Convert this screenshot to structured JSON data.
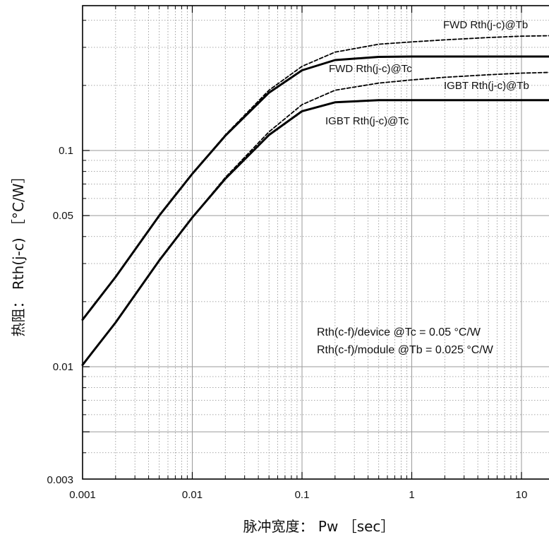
{
  "chart_data": {
    "type": "line",
    "title": "",
    "xlabel": "脉冲宽度： Pw ［sec］",
    "ylabel": "热阻： Rth(j-c) ［°C/W］",
    "x_scale": "log",
    "y_scale": "log",
    "xlim": [
      0.001,
      20
    ],
    "ylim": [
      0.003,
      0.5
    ],
    "x_ticks": [
      0.001,
      0.01,
      0.1,
      1,
      10
    ],
    "x_tick_labels": [
      "0.001",
      "0.01",
      "0.1",
      "1",
      "10"
    ],
    "y_ticks": [
      0.003,
      0.01,
      0.05,
      0.1
    ],
    "y_tick_labels": [
      "0.003",
      "0.01",
      "0.05",
      "0.1"
    ],
    "grid": true,
    "series": [
      {
        "name": "FWD Rth(j-c)@Tb",
        "style": "dashed",
        "x": [
          0.001,
          0.002,
          0.005,
          0.01,
          0.02,
          0.05,
          0.1,
          0.2,
          0.5,
          1,
          2,
          5,
          10,
          20
        ],
        "y": [
          0.0165,
          0.026,
          0.05,
          0.078,
          0.118,
          0.19,
          0.245,
          0.285,
          0.31,
          0.318,
          0.325,
          0.333,
          0.338,
          0.34
        ]
      },
      {
        "name": "FWD Rth(j-c)@Tc",
        "style": "solid",
        "x": [
          0.001,
          0.002,
          0.005,
          0.01,
          0.02,
          0.05,
          0.1,
          0.2,
          0.5,
          1,
          2,
          5,
          10,
          20
        ],
        "y": [
          0.0165,
          0.026,
          0.05,
          0.078,
          0.117,
          0.185,
          0.235,
          0.262,
          0.271,
          0.272,
          0.272,
          0.272,
          0.272,
          0.272
        ]
      },
      {
        "name": "IGBT Rth(j-c)@Tb",
        "style": "dashed",
        "x": [
          0.001,
          0.002,
          0.005,
          0.01,
          0.02,
          0.05,
          0.1,
          0.2,
          0.5,
          1,
          2,
          5,
          10,
          20
        ],
        "y": [
          0.0102,
          0.016,
          0.031,
          0.049,
          0.075,
          0.122,
          0.163,
          0.19,
          0.205,
          0.212,
          0.218,
          0.224,
          0.228,
          0.23
        ]
      },
      {
        "name": "IGBT Rth(j-c)@Tc",
        "style": "solid",
        "x": [
          0.001,
          0.002,
          0.005,
          0.01,
          0.02,
          0.05,
          0.1,
          0.2,
          0.5,
          1,
          2,
          5,
          10,
          20
        ],
        "y": [
          0.0102,
          0.016,
          0.031,
          0.049,
          0.074,
          0.118,
          0.152,
          0.167,
          0.171,
          0.171,
          0.171,
          0.171,
          0.171,
          0.171
        ]
      }
    ],
    "annotations": [
      "Rth(c-f)/device @Tc = 0.05 °C/W",
      "Rth(c-f)/module @Tb = 0.025 °C/W"
    ]
  }
}
